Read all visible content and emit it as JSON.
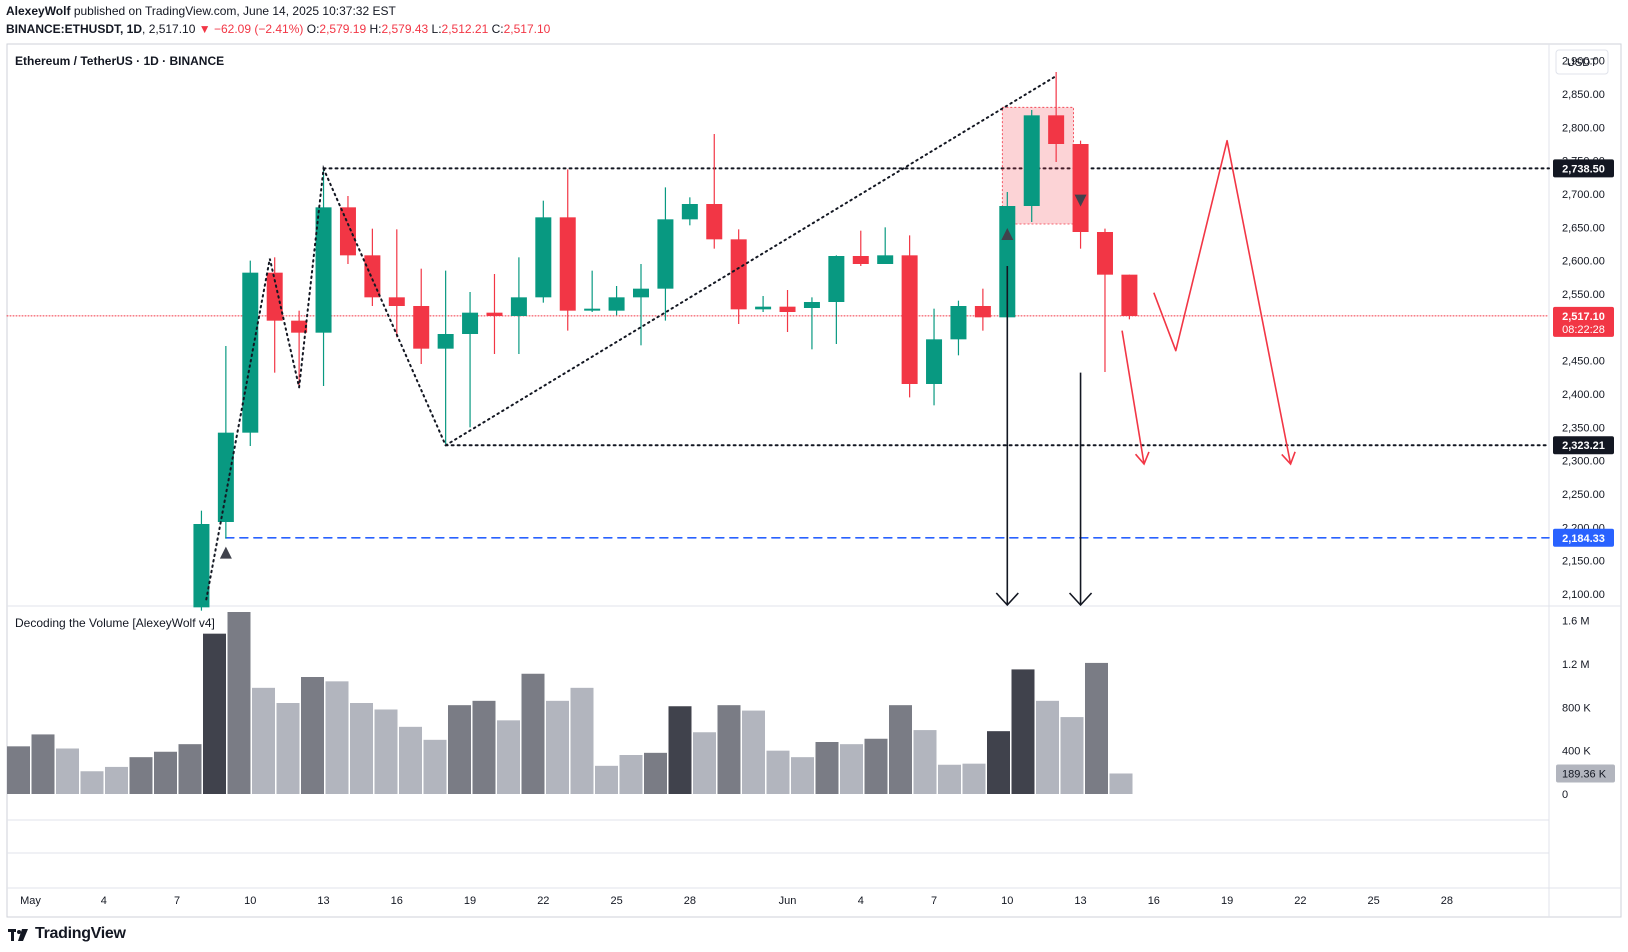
{
  "header": {
    "author": "AlexeyWolf",
    "published_text": "published on TradingView.com, June 14, 2025 10:37:32 EST",
    "symbol_line_prefix": "BINANCE:ETHUSDT, 1D",
    "last": "2,517.10",
    "change": "−62.09 (−2.41%)",
    "o_label": "O:",
    "o": "2,579.19",
    "h_label": "H:",
    "h": "2,579.43",
    "l_label": "L:",
    "l": "2,512.21",
    "c_label": "C:",
    "c": "2,517.10"
  },
  "pane_title": "Ethereum / TetherUS · 1D · BINANCE",
  "volume_title": "Decoding the Volume [AlexeyWolf v4]",
  "currency": "USDT",
  "brand": "TradingView",
  "colors": {
    "up": "#089981",
    "down": "#f23645",
    "blue": "#2962ff",
    "vol_dark": "#40424c",
    "vol_mid": "#7a7c85",
    "vol_light": "#b2b5be"
  },
  "chart_data": {
    "type": "candlestick",
    "price_ticks": [
      "2,100.00",
      "2,150.00",
      "2,200.00",
      "2,250.00",
      "2,300.00",
      "2,350.00",
      "2,400.00",
      "2,450.00",
      "2,500.00",
      "2,550.00",
      "2,600.00",
      "2,650.00",
      "2,700.00",
      "2,750.00",
      "2,800.00",
      "2,850.00",
      "2,900.00"
    ],
    "price_tick_values": [
      2100,
      2150,
      2200,
      2250,
      2300,
      2350,
      2400,
      2450,
      2500,
      2550,
      2600,
      2650,
      2700,
      2750,
      2800,
      2850,
      2900
    ],
    "price_range": [
      2082,
      2925
    ],
    "volume_ticks": [
      "0",
      "400 K",
      "800 K",
      "1.2 M",
      "1.6 M"
    ],
    "volume_tick_values": [
      0,
      400000,
      800000,
      1200000,
      1600000
    ],
    "volume_range": [
      0,
      1680000
    ],
    "x_labels": [
      "May",
      "4",
      "7",
      "10",
      "13",
      "16",
      "19",
      "22",
      "25",
      "28",
      "Jun",
      "4",
      "7",
      "10",
      "13",
      "16",
      "19",
      "22",
      "25",
      "28"
    ],
    "x_label_days": [
      1,
      4,
      7,
      10,
      13,
      16,
      19,
      22,
      25,
      28,
      32,
      35,
      38,
      41,
      44,
      47,
      50,
      53,
      56,
      59
    ],
    "candles": [
      {
        "d": 8,
        "o": 2080,
        "h": 2225,
        "l": 2075,
        "c": 2205
      },
      {
        "d": 9,
        "o": 2208,
        "h": 2472,
        "l": 2183,
        "c": 2342
      },
      {
        "d": 10,
        "o": 2342,
        "h": 2600,
        "l": 2322,
        "c": 2582
      },
      {
        "d": 11,
        "o": 2582,
        "h": 2605,
        "l": 2432,
        "c": 2510
      },
      {
        "d": 12,
        "o": 2510,
        "h": 2525,
        "l": 2410,
        "c": 2492
      },
      {
        "d": 13,
        "o": 2492,
        "h": 2738,
        "l": 2412,
        "c": 2680
      },
      {
        "d": 14,
        "o": 2680,
        "h": 2697,
        "l": 2595,
        "c": 2608
      },
      {
        "d": 15,
        "o": 2608,
        "h": 2648,
        "l": 2532,
        "c": 2545
      },
      {
        "d": 16,
        "o": 2545,
        "h": 2647,
        "l": 2485,
        "c": 2532
      },
      {
        "d": 17,
        "o": 2532,
        "h": 2588,
        "l": 2445,
        "c": 2468
      },
      {
        "d": 18,
        "o": 2468,
        "h": 2585,
        "l": 2325,
        "c": 2490
      },
      {
        "d": 19,
        "o": 2490,
        "h": 2553,
        "l": 2350,
        "c": 2522
      },
      {
        "d": 20,
        "o": 2522,
        "h": 2580,
        "l": 2460,
        "c": 2517
      },
      {
        "d": 21,
        "o": 2517,
        "h": 2605,
        "l": 2460,
        "c": 2545
      },
      {
        "d": 22,
        "o": 2545,
        "h": 2690,
        "l": 2537,
        "c": 2665
      },
      {
        "d": 23,
        "o": 2665,
        "h": 2737,
        "l": 2495,
        "c": 2525
      },
      {
        "d": 24,
        "o": 2525,
        "h": 2585,
        "l": 2523,
        "c": 2528
      },
      {
        "d": 25,
        "o": 2525,
        "h": 2562,
        "l": 2518,
        "c": 2545
      },
      {
        "d": 26,
        "o": 2545,
        "h": 2595,
        "l": 2473,
        "c": 2558
      },
      {
        "d": 27,
        "o": 2558,
        "h": 2710,
        "l": 2510,
        "c": 2662
      },
      {
        "d": 28,
        "o": 2662,
        "h": 2695,
        "l": 2653,
        "c": 2685
      },
      {
        "d": 29,
        "o": 2685,
        "h": 2790,
        "l": 2618,
        "c": 2632
      },
      {
        "d": 30,
        "o": 2632,
        "h": 2647,
        "l": 2505,
        "c": 2527
      },
      {
        "d": 31,
        "o": 2527,
        "h": 2547,
        "l": 2523,
        "c": 2531
      },
      {
        "d": 32,
        "o": 2531,
        "h": 2556,
        "l": 2493,
        "c": 2523
      },
      {
        "d": 33,
        "o": 2529,
        "h": 2545,
        "l": 2467,
        "c": 2538
      },
      {
        "d": 34,
        "o": 2538,
        "h": 2608,
        "l": 2475,
        "c": 2607
      },
      {
        "d": 35,
        "o": 2607,
        "h": 2645,
        "l": 2592,
        "c": 2595
      },
      {
        "d": 36,
        "o": 2595,
        "h": 2650,
        "l": 2595,
        "c": 2608
      },
      {
        "d": 37,
        "o": 2608,
        "h": 2638,
        "l": 2395,
        "c": 2415
      },
      {
        "d": 38,
        "o": 2415,
        "h": 2528,
        "l": 2383,
        "c": 2482
      },
      {
        "d": 39,
        "o": 2482,
        "h": 2540,
        "l": 2458,
        "c": 2532
      },
      {
        "d": 40,
        "o": 2532,
        "h": 2558,
        "l": 2495,
        "c": 2515
      },
      {
        "d": 41,
        "o": 2515,
        "h": 2703,
        "l": 2480,
        "c": 2682
      },
      {
        "d": 42,
        "o": 2682,
        "h": 2826,
        "l": 2658,
        "c": 2818
      },
      {
        "d": 43,
        "o": 2818,
        "h": 2883,
        "l": 2748,
        "c": 2775
      },
      {
        "d": 44,
        "o": 2775,
        "h": 2780,
        "l": 2618,
        "c": 2643
      },
      {
        "d": 45,
        "o": 2643,
        "h": 2648,
        "l": 2433,
        "c": 2579
      },
      {
        "d": 46,
        "o": 2579,
        "h": 2579,
        "l": 2512,
        "c": 2517
      }
    ],
    "volume": [
      {
        "d": 0,
        "v": 440000,
        "shade": "mid"
      },
      {
        "d": 1,
        "v": 550000,
        "shade": "mid"
      },
      {
        "d": 2,
        "v": 420000,
        "shade": "light"
      },
      {
        "d": 3,
        "v": 210000,
        "shade": "light"
      },
      {
        "d": 4,
        "v": 250000,
        "shade": "light"
      },
      {
        "d": 5,
        "v": 340000,
        "shade": "mid"
      },
      {
        "d": 6,
        "v": 390000,
        "shade": "mid"
      },
      {
        "d": 7,
        "v": 460000,
        "shade": "mid"
      },
      {
        "d": 8,
        "v": 1480000,
        "shade": "dark"
      },
      {
        "d": 9,
        "v": 1680000,
        "shade": "mid"
      },
      {
        "d": 10,
        "v": 980000,
        "shade": "light"
      },
      {
        "d": 11,
        "v": 840000,
        "shade": "light"
      },
      {
        "d": 12,
        "v": 1080000,
        "shade": "mid"
      },
      {
        "d": 13,
        "v": 1040000,
        "shade": "light"
      },
      {
        "d": 14,
        "v": 840000,
        "shade": "light"
      },
      {
        "d": 15,
        "v": 780000,
        "shade": "light"
      },
      {
        "d": 16,
        "v": 620000,
        "shade": "light"
      },
      {
        "d": 17,
        "v": 500000,
        "shade": "light"
      },
      {
        "d": 18,
        "v": 820000,
        "shade": "mid"
      },
      {
        "d": 19,
        "v": 860000,
        "shade": "mid"
      },
      {
        "d": 20,
        "v": 680000,
        "shade": "light"
      },
      {
        "d": 21,
        "v": 1110000,
        "shade": "mid"
      },
      {
        "d": 22,
        "v": 860000,
        "shade": "light"
      },
      {
        "d": 23,
        "v": 980000,
        "shade": "light"
      },
      {
        "d": 24,
        "v": 260000,
        "shade": "light"
      },
      {
        "d": 25,
        "v": 360000,
        "shade": "light"
      },
      {
        "d": 26,
        "v": 380000,
        "shade": "mid"
      },
      {
        "d": 27,
        "v": 810000,
        "shade": "dark"
      },
      {
        "d": 28,
        "v": 570000,
        "shade": "light"
      },
      {
        "d": 29,
        "v": 820000,
        "shade": "mid"
      },
      {
        "d": 30,
        "v": 770000,
        "shade": "light"
      },
      {
        "d": 31,
        "v": 400000,
        "shade": "light"
      },
      {
        "d": 32,
        "v": 340000,
        "shade": "light"
      },
      {
        "d": 33,
        "v": 480000,
        "shade": "mid"
      },
      {
        "d": 34,
        "v": 460000,
        "shade": "light"
      },
      {
        "d": 35,
        "v": 510000,
        "shade": "mid"
      },
      {
        "d": 36,
        "v": 820000,
        "shade": "mid"
      },
      {
        "d": 37,
        "v": 590000,
        "shade": "light"
      },
      {
        "d": 38,
        "v": 270000,
        "shade": "light"
      },
      {
        "d": 39,
        "v": 280000,
        "shade": "light"
      },
      {
        "d": 40,
        "v": 580000,
        "shade": "dark"
      },
      {
        "d": 41,
        "v": 1150000,
        "shade": "dark"
      },
      {
        "d": 42,
        "v": 860000,
        "shade": "light"
      },
      {
        "d": 43,
        "v": 710000,
        "shade": "light"
      },
      {
        "d": 44,
        "v": 1210000,
        "shade": "mid"
      },
      {
        "d": 45,
        "v": 189360,
        "shade": "light"
      }
    ],
    "price_labels": [
      {
        "text": "2,738.50",
        "value": 2738.5,
        "bg": "#131722",
        "fg": "#ffffff"
      },
      {
        "text": "2,517.10",
        "value": 2517.1,
        "bg": "#f23645",
        "fg": "#ffffff",
        "sub": "08:22:28"
      },
      {
        "text": "2,323.21",
        "value": 2323.21,
        "bg": "#131722",
        "fg": "#ffffff"
      },
      {
        "text": "2,184.33",
        "value": 2184.33,
        "bg": "#2962ff",
        "fg": "#ffffff"
      }
    ],
    "volume_label": {
      "text": "189.36 K",
      "value": 189360
    },
    "levels": [
      {
        "value": 2738.5,
        "style": "dotted",
        "color": "#131722",
        "from_day": 13
      },
      {
        "value": 2323.21,
        "style": "dotted",
        "color": "#131722",
        "from_day": 18
      },
      {
        "value": 2184.33,
        "style": "dashed",
        "color": "#2962ff",
        "from_day": 9
      },
      {
        "value": 2517.1,
        "style": "current",
        "color": "#f23645",
        "from_day": 0
      }
    ],
    "zigzag": [
      {
        "d": 8.2,
        "p": 2092
      },
      {
        "d": 10.8,
        "p": 2603
      },
      {
        "d": 12,
        "p": 2410
      },
      {
        "d": 13,
        "p": 2738
      },
      {
        "d": 18,
        "p": 2323
      },
      {
        "d": 43,
        "p": 2877
      }
    ],
    "markers": [
      {
        "d": 9,
        "p": 2162,
        "dir": "up"
      },
      {
        "d": 41,
        "p": 2640,
        "dir": "up"
      },
      {
        "d": 44,
        "p": 2690,
        "dir": "down"
      }
    ],
    "highlight_box": {
      "d0": 41,
      "d1": 44,
      "p0": 2655,
      "p1": 2830
    },
    "black_arrows": [
      {
        "d": 41,
        "p_top": 2592,
        "p_bottom": 2082
      },
      {
        "d": 44,
        "p_top": 2432,
        "p_bottom": 2082
      }
    ],
    "forecast_paths": [
      [
        {
          "d": 45.7,
          "p": 2495
        },
        {
          "d": 46.6,
          "p": 2295
        }
      ],
      [
        {
          "d": 47,
          "p": 2552
        },
        {
          "d": 47.9,
          "p": 2465
        },
        {
          "d": 50,
          "p": 2780
        },
        {
          "d": 52.6,
          "p": 2295
        }
      ]
    ]
  }
}
